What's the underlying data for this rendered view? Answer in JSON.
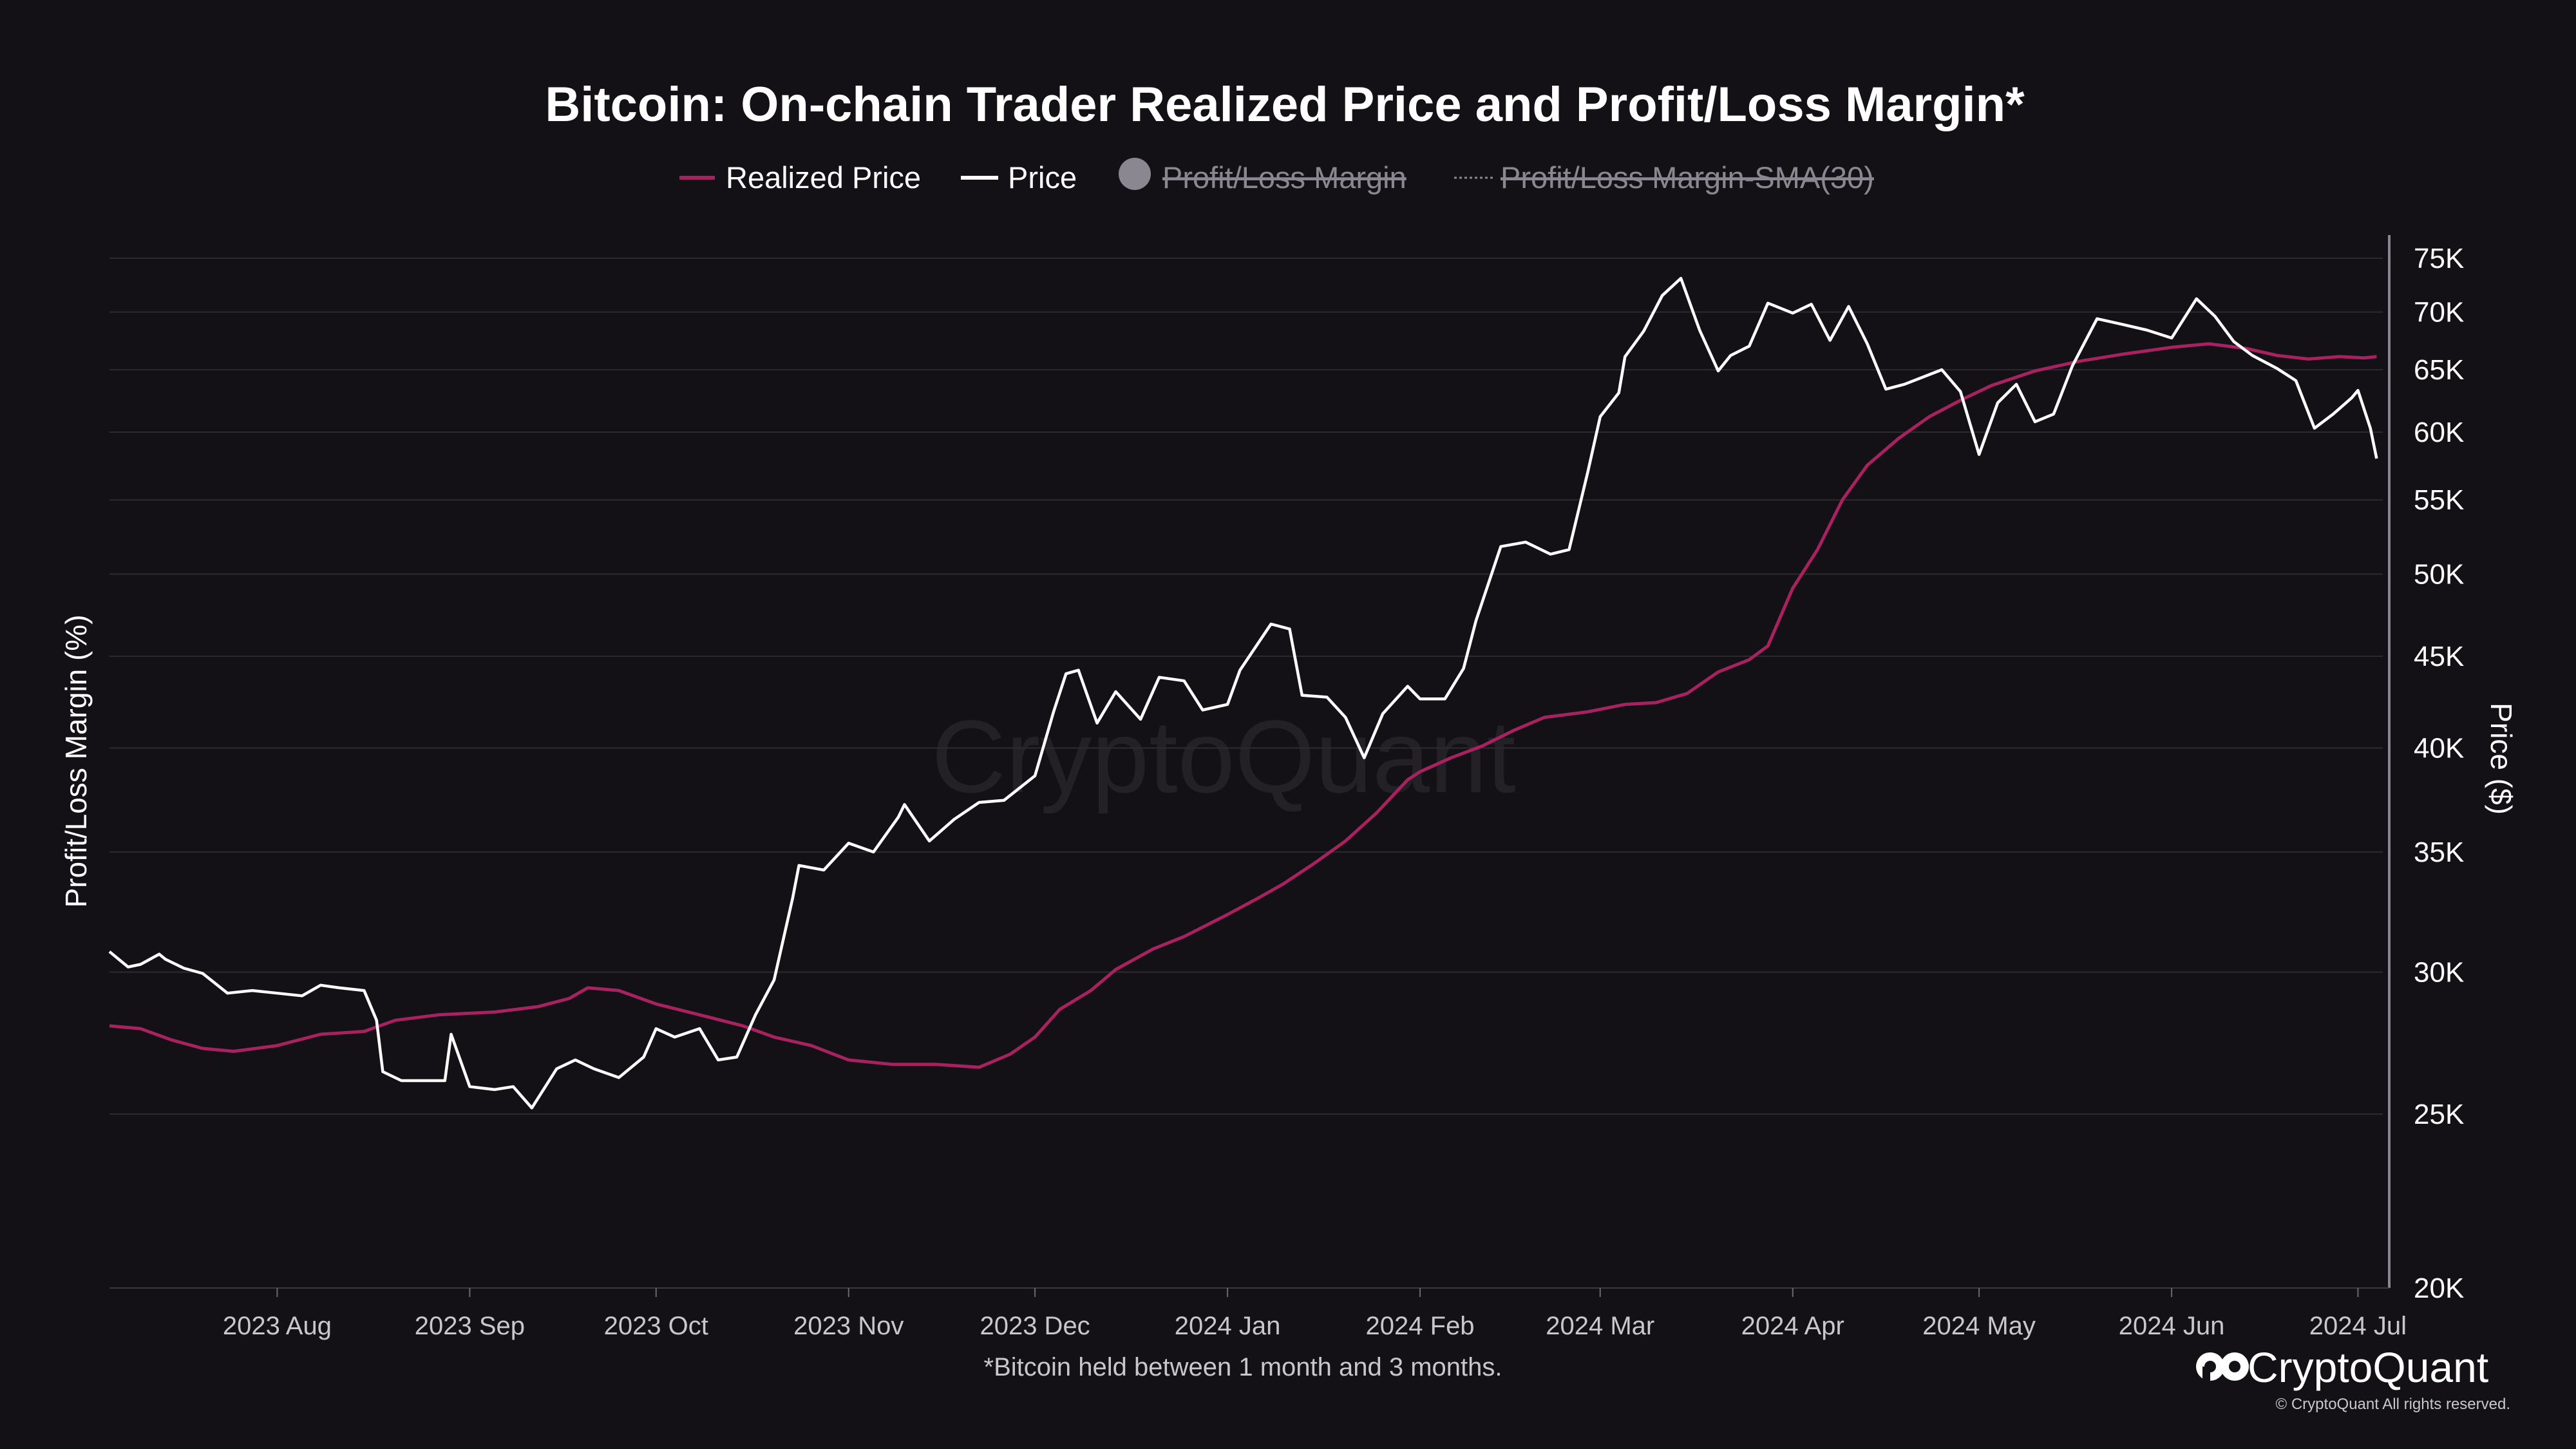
{
  "chart_data": {
    "type": "line",
    "title": "Bitcoin: On-chain Trader Realized Price and Profit/Loss Margin*",
    "subtitle": "*Bitcoin held between 1 month and 3 months.",
    "y_left_label": "Profit/Loss Margin (%)",
    "y_right_label": "Price ($)",
    "y_right_scale": "log",
    "y_right_range": [
      20000,
      76000
    ],
    "y_right_ticks": [
      {
        "value": 20000,
        "label": "20K"
      },
      {
        "value": 25000,
        "label": "25K"
      },
      {
        "value": 30000,
        "label": "30K"
      },
      {
        "value": 35000,
        "label": "35K"
      },
      {
        "value": 40000,
        "label": "40K"
      },
      {
        "value": 45000,
        "label": "45K"
      },
      {
        "value": 50000,
        "label": "50K"
      },
      {
        "value": 55000,
        "label": "55K"
      },
      {
        "value": 60000,
        "label": "60K"
      },
      {
        "value": 65000,
        "label": "65K"
      },
      {
        "value": 70000,
        "label": "70K"
      },
      {
        "value": 75000,
        "label": "75K"
      }
    ],
    "x_range": [
      "2023-07-05",
      "2024-07-05"
    ],
    "x_ticks": [
      {
        "date": "2023-08-01",
        "label": "2023 Aug"
      },
      {
        "date": "2023-09-01",
        "label": "2023 Sep"
      },
      {
        "date": "2023-10-01",
        "label": "2023 Oct"
      },
      {
        "date": "2023-11-01",
        "label": "2023 Nov"
      },
      {
        "date": "2023-12-01",
        "label": "2023 Dec"
      },
      {
        "date": "2024-01-01",
        "label": "2024 Jan"
      },
      {
        "date": "2024-02-01",
        "label": "2024 Feb"
      },
      {
        "date": "2024-03-01",
        "label": "2024 Mar"
      },
      {
        "date": "2024-04-01",
        "label": "2024 Apr"
      },
      {
        "date": "2024-05-01",
        "label": "2024 May"
      },
      {
        "date": "2024-06-01",
        "label": "2024 Jun"
      },
      {
        "date": "2024-07-01",
        "label": "2024 Jul"
      }
    ],
    "legend": [
      {
        "name": "Realized Price",
        "color": "#a8225f",
        "marker": "line",
        "visible": true
      },
      {
        "name": "Price",
        "color": "#ffffff",
        "marker": "line",
        "visible": true
      },
      {
        "name": "Profit/Loss Margin",
        "color": "#8a8790",
        "marker": "circle",
        "visible": false
      },
      {
        "name": "Profit/Loss Margin-SMA(30)",
        "color": "#8a8790",
        "marker": "dotted",
        "visible": false
      }
    ],
    "legend_position": "top-center",
    "grid": true,
    "series": [
      {
        "name": "Price",
        "color": "#ffffff",
        "points": [
          [
            "2023-07-05",
            30800
          ],
          [
            "2023-07-08",
            30200
          ],
          [
            "2023-07-10",
            30300
          ],
          [
            "2023-07-13",
            30700
          ],
          [
            "2023-07-14",
            30500
          ],
          [
            "2023-07-17",
            30150
          ],
          [
            "2023-07-20",
            29950
          ],
          [
            "2023-07-24",
            29200
          ],
          [
            "2023-07-28",
            29300
          ],
          [
            "2023-08-01",
            29200
          ],
          [
            "2023-08-05",
            29100
          ],
          [
            "2023-08-08",
            29500
          ],
          [
            "2023-08-11",
            29400
          ],
          [
            "2023-08-15",
            29300
          ],
          [
            "2023-08-17",
            28200
          ],
          [
            "2023-08-18",
            26400
          ],
          [
            "2023-08-21",
            26100
          ],
          [
            "2023-08-25",
            26100
          ],
          [
            "2023-08-28",
            26100
          ],
          [
            "2023-08-29",
            27700
          ],
          [
            "2023-09-01",
            25900
          ],
          [
            "2023-09-05",
            25800
          ],
          [
            "2023-09-08",
            25900
          ],
          [
            "2023-09-11",
            25200
          ],
          [
            "2023-09-15",
            26500
          ],
          [
            "2023-09-18",
            26800
          ],
          [
            "2023-09-21",
            26500
          ],
          [
            "2023-09-25",
            26200
          ],
          [
            "2023-09-29",
            26900
          ],
          [
            "2023-10-01",
            27900
          ],
          [
            "2023-10-04",
            27600
          ],
          [
            "2023-10-08",
            27900
          ],
          [
            "2023-10-11",
            26800
          ],
          [
            "2023-10-14",
            26900
          ],
          [
            "2023-10-17",
            28400
          ],
          [
            "2023-10-20",
            29700
          ],
          [
            "2023-10-23",
            33000
          ],
          [
            "2023-10-24",
            34400
          ],
          [
            "2023-10-28",
            34200
          ],
          [
            "2023-11-01",
            35400
          ],
          [
            "2023-11-05",
            35000
          ],
          [
            "2023-11-09",
            36600
          ],
          [
            "2023-11-10",
            37200
          ],
          [
            "2023-11-14",
            35500
          ],
          [
            "2023-11-18",
            36500
          ],
          [
            "2023-11-22",
            37300
          ],
          [
            "2023-11-26",
            37400
          ],
          [
            "2023-12-01",
            38600
          ],
          [
            "2023-12-04",
            41900
          ],
          [
            "2023-12-06",
            44000
          ],
          [
            "2023-12-08",
            44200
          ],
          [
            "2023-12-11",
            41300
          ],
          [
            "2023-12-14",
            43000
          ],
          [
            "2023-12-18",
            41500
          ],
          [
            "2023-12-21",
            43800
          ],
          [
            "2023-12-25",
            43600
          ],
          [
            "2023-12-28",
            42000
          ],
          [
            "2024-01-01",
            42300
          ],
          [
            "2024-01-03",
            44200
          ],
          [
            "2024-01-08",
            46900
          ],
          [
            "2024-01-11",
            46600
          ],
          [
            "2024-01-13",
            42800
          ],
          [
            "2024-01-17",
            42700
          ],
          [
            "2024-01-20",
            41600
          ],
          [
            "2024-01-23",
            39500
          ],
          [
            "2024-01-26",
            41800
          ],
          [
            "2024-01-30",
            43300
          ],
          [
            "2024-02-01",
            42600
          ],
          [
            "2024-02-05",
            42600
          ],
          [
            "2024-02-08",
            44300
          ],
          [
            "2024-02-10",
            47100
          ],
          [
            "2024-02-14",
            51800
          ],
          [
            "2024-02-18",
            52100
          ],
          [
            "2024-02-22",
            51300
          ],
          [
            "2024-02-25",
            51600
          ],
          [
            "2024-02-28",
            57000
          ],
          [
            "2024-03-01",
            61200
          ],
          [
            "2024-03-04",
            63100
          ],
          [
            "2024-03-05",
            66100
          ],
          [
            "2024-03-08",
            68300
          ],
          [
            "2024-03-11",
            71500
          ],
          [
            "2024-03-14",
            73100
          ],
          [
            "2024-03-17",
            68400
          ],
          [
            "2024-03-20",
            64900
          ],
          [
            "2024-03-22",
            66200
          ],
          [
            "2024-03-25",
            67000
          ],
          [
            "2024-03-28",
            70800
          ],
          [
            "2024-04-01",
            69900
          ],
          [
            "2024-04-04",
            70700
          ],
          [
            "2024-04-07",
            67500
          ],
          [
            "2024-04-10",
            70500
          ],
          [
            "2024-04-13",
            67200
          ],
          [
            "2024-04-16",
            63400
          ],
          [
            "2024-04-19",
            63800
          ],
          [
            "2024-04-22",
            64400
          ],
          [
            "2024-04-25",
            65000
          ],
          [
            "2024-04-28",
            63200
          ],
          [
            "2024-05-01",
            58300
          ],
          [
            "2024-05-04",
            62300
          ],
          [
            "2024-05-07",
            63800
          ],
          [
            "2024-05-10",
            60800
          ],
          [
            "2024-05-13",
            61400
          ],
          [
            "2024-05-16",
            65300
          ],
          [
            "2024-05-20",
            69400
          ],
          [
            "2024-05-24",
            68900
          ],
          [
            "2024-05-28",
            68400
          ],
          [
            "2024-06-01",
            67700
          ],
          [
            "2024-06-05",
            71200
          ],
          [
            "2024-06-08",
            69600
          ],
          [
            "2024-06-11",
            67400
          ],
          [
            "2024-06-14",
            66200
          ],
          [
            "2024-06-18",
            65100
          ],
          [
            "2024-06-21",
            64100
          ],
          [
            "2024-06-24",
            60300
          ],
          [
            "2024-06-27",
            61400
          ],
          [
            "2024-06-30",
            62700
          ],
          [
            "2024-07-01",
            63300
          ],
          [
            "2024-07-03",
            60300
          ],
          [
            "2024-07-04",
            58000
          ]
        ]
      },
      {
        "name": "Realized Price",
        "color": "#a8225f",
        "points": [
          [
            "2023-07-05",
            28000
          ],
          [
            "2023-07-10",
            27900
          ],
          [
            "2023-07-15",
            27500
          ],
          [
            "2023-07-20",
            27200
          ],
          [
            "2023-07-25",
            27100
          ],
          [
            "2023-08-01",
            27300
          ],
          [
            "2023-08-08",
            27700
          ],
          [
            "2023-08-15",
            27800
          ],
          [
            "2023-08-20",
            28200
          ],
          [
            "2023-08-27",
            28400
          ],
          [
            "2023-09-05",
            28500
          ],
          [
            "2023-09-12",
            28700
          ],
          [
            "2023-09-17",
            29000
          ],
          [
            "2023-09-20",
            29400
          ],
          [
            "2023-09-25",
            29300
          ],
          [
            "2023-10-01",
            28800
          ],
          [
            "2023-10-08",
            28400
          ],
          [
            "2023-10-15",
            28000
          ],
          [
            "2023-10-20",
            27600
          ],
          [
            "2023-10-26",
            27300
          ],
          [
            "2023-11-01",
            26800
          ],
          [
            "2023-11-08",
            26650
          ],
          [
            "2023-11-15",
            26650
          ],
          [
            "2023-11-22",
            26550
          ],
          [
            "2023-11-27",
            27000
          ],
          [
            "2023-12-01",
            27600
          ],
          [
            "2023-12-05",
            28600
          ],
          [
            "2023-12-10",
            29300
          ],
          [
            "2023-12-14",
            30100
          ],
          [
            "2023-12-20",
            30900
          ],
          [
            "2023-12-25",
            31400
          ],
          [
            "2024-01-01",
            32300
          ],
          [
            "2024-01-06",
            33000
          ],
          [
            "2024-01-10",
            33600
          ],
          [
            "2024-01-15",
            34500
          ],
          [
            "2024-01-20",
            35500
          ],
          [
            "2024-01-25",
            36800
          ],
          [
            "2024-01-30",
            38400
          ],
          [
            "2024-02-01",
            38800
          ],
          [
            "2024-02-06",
            39500
          ],
          [
            "2024-02-11",
            40100
          ],
          [
            "2024-02-16",
            40900
          ],
          [
            "2024-02-21",
            41600
          ],
          [
            "2024-02-28",
            41900
          ],
          [
            "2024-03-05",
            42300
          ],
          [
            "2024-03-10",
            42400
          ],
          [
            "2024-03-15",
            42900
          ],
          [
            "2024-03-20",
            44100
          ],
          [
            "2024-03-25",
            44800
          ],
          [
            "2024-03-28",
            45600
          ],
          [
            "2024-04-01",
            49100
          ],
          [
            "2024-04-05",
            51600
          ],
          [
            "2024-04-09",
            55000
          ],
          [
            "2024-04-13",
            57500
          ],
          [
            "2024-04-18",
            59500
          ],
          [
            "2024-04-23",
            61200
          ],
          [
            "2024-04-28",
            62500
          ],
          [
            "2024-05-03",
            63700
          ],
          [
            "2024-05-10",
            64900
          ],
          [
            "2024-05-17",
            65700
          ],
          [
            "2024-05-24",
            66300
          ],
          [
            "2024-06-01",
            66900
          ],
          [
            "2024-06-07",
            67200
          ],
          [
            "2024-06-13",
            66800
          ],
          [
            "2024-06-18",
            66200
          ],
          [
            "2024-06-23",
            65900
          ],
          [
            "2024-06-28",
            66100
          ],
          [
            "2024-07-02",
            66000
          ],
          [
            "2024-07-04",
            66100
          ]
        ]
      }
    ]
  },
  "branding": {
    "watermark": "CryptoQuant",
    "brand_name": "CryptoQuant",
    "copyright": "© CryptoQuant All rights reserved."
  }
}
